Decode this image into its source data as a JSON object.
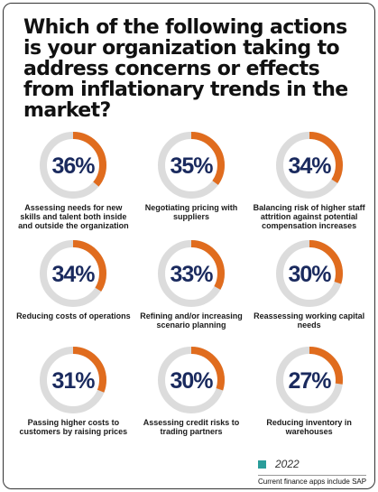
{
  "title": "Which of the following actions is your organization taking to address concerns or effects from inflationary trends in the market?",
  "colors": {
    "accent": "#e06c1e",
    "track": "#dcdcdc",
    "value_text": "#1a2a5e",
    "legend_swatch": "#2a9d9a"
  },
  "legend": {
    "label": "2022"
  },
  "footnote": "Current finance apps include SAP",
  "chart_data": {
    "type": "pie",
    "unit": "%",
    "items": [
      {
        "label": "Assessing needs  for new skills and talent both inside and outside the organization",
        "value": 36,
        "display": "36%"
      },
      {
        "label": "Negotiating pricing with suppliers",
        "value": 35,
        "display": "35%"
      },
      {
        "label": "Balancing risk  of higher staff attrition against potential compensation increases",
        "value": 34,
        "display": "34%"
      },
      {
        "label": "Reducing costs of operations",
        "value": 34,
        "display": "34%"
      },
      {
        "label": "Refining and/or increasing scenario planning",
        "value": 33,
        "display": "33%"
      },
      {
        "label": "Reassessing working capital needs",
        "value": 30,
        "display": "30%"
      },
      {
        "label": "Passing higher costs to customers by raising prices",
        "value": 31,
        "display": "31%"
      },
      {
        "label": "Assessing credit risks to trading partners",
        "value": 30,
        "display": "30%"
      },
      {
        "label": "Reducing inventory in warehouses",
        "value": 27,
        "display": "27%"
      }
    ]
  }
}
